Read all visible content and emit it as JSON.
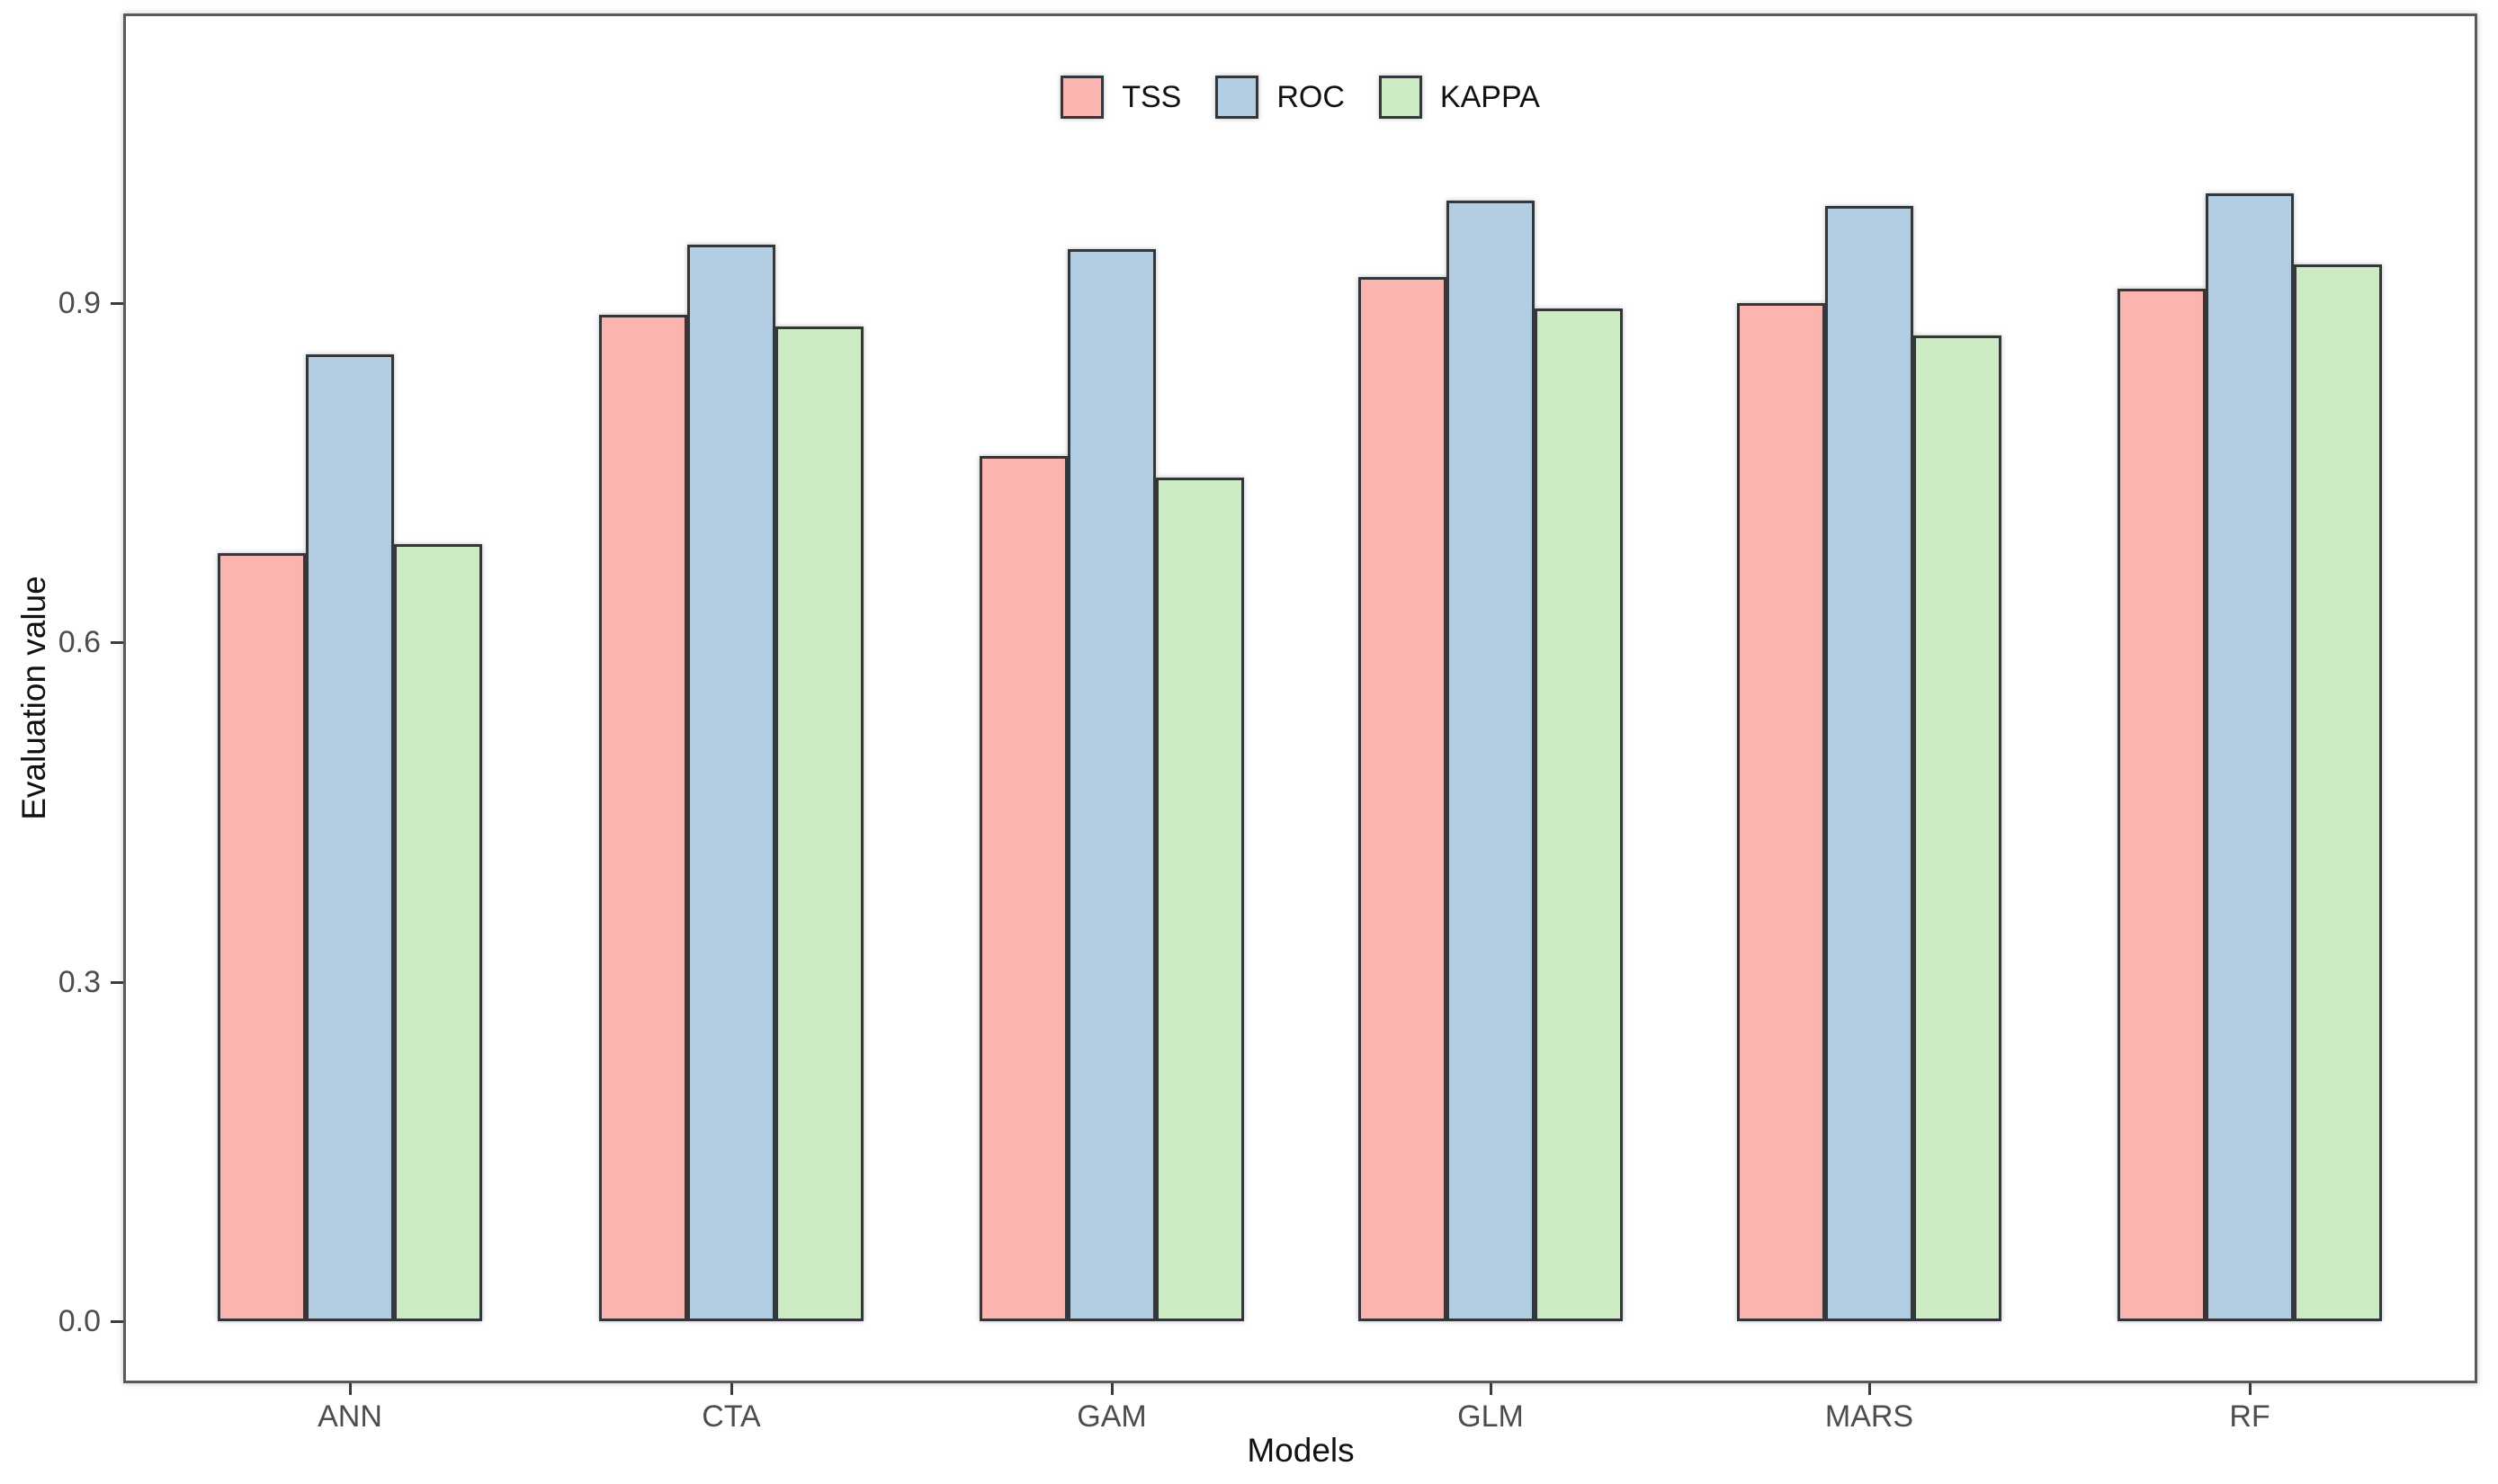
{
  "chart_data": {
    "type": "bar",
    "title": "",
    "xlabel": "Models",
    "ylabel": "Evaluation value",
    "categories": [
      "ANN",
      "CTA",
      "GAM",
      "GLM",
      "MARS",
      "RF"
    ],
    "series": [
      {
        "name": "TSS",
        "color": "#FBB4AE",
        "values": [
          0.679,
          0.89,
          0.765,
          0.923,
          0.9,
          0.913
        ]
      },
      {
        "name": "ROC",
        "color": "#B3CDE3",
        "values": [
          0.855,
          0.952,
          0.948,
          0.991,
          0.986,
          0.997
        ]
      },
      {
        "name": "KAPPA",
        "color": "#CCEBC5",
        "values": [
          0.687,
          0.879,
          0.746,
          0.895,
          0.871,
          0.934
        ]
      }
    ],
    "y_ticks": [
      "0.0",
      "0.3",
      "0.6",
      "0.9"
    ],
    "y_tick_values": [
      0.0,
      0.3,
      0.6,
      0.9
    ],
    "ylim": [
      -0.055,
      1.156
    ],
    "grid": false,
    "legend_position": "top-center-inside",
    "bar_border_color": "#33373b",
    "panel_border_color": "#595959",
    "tick_label_color": "#4d4d4d",
    "axis_title_color": "#111111"
  }
}
